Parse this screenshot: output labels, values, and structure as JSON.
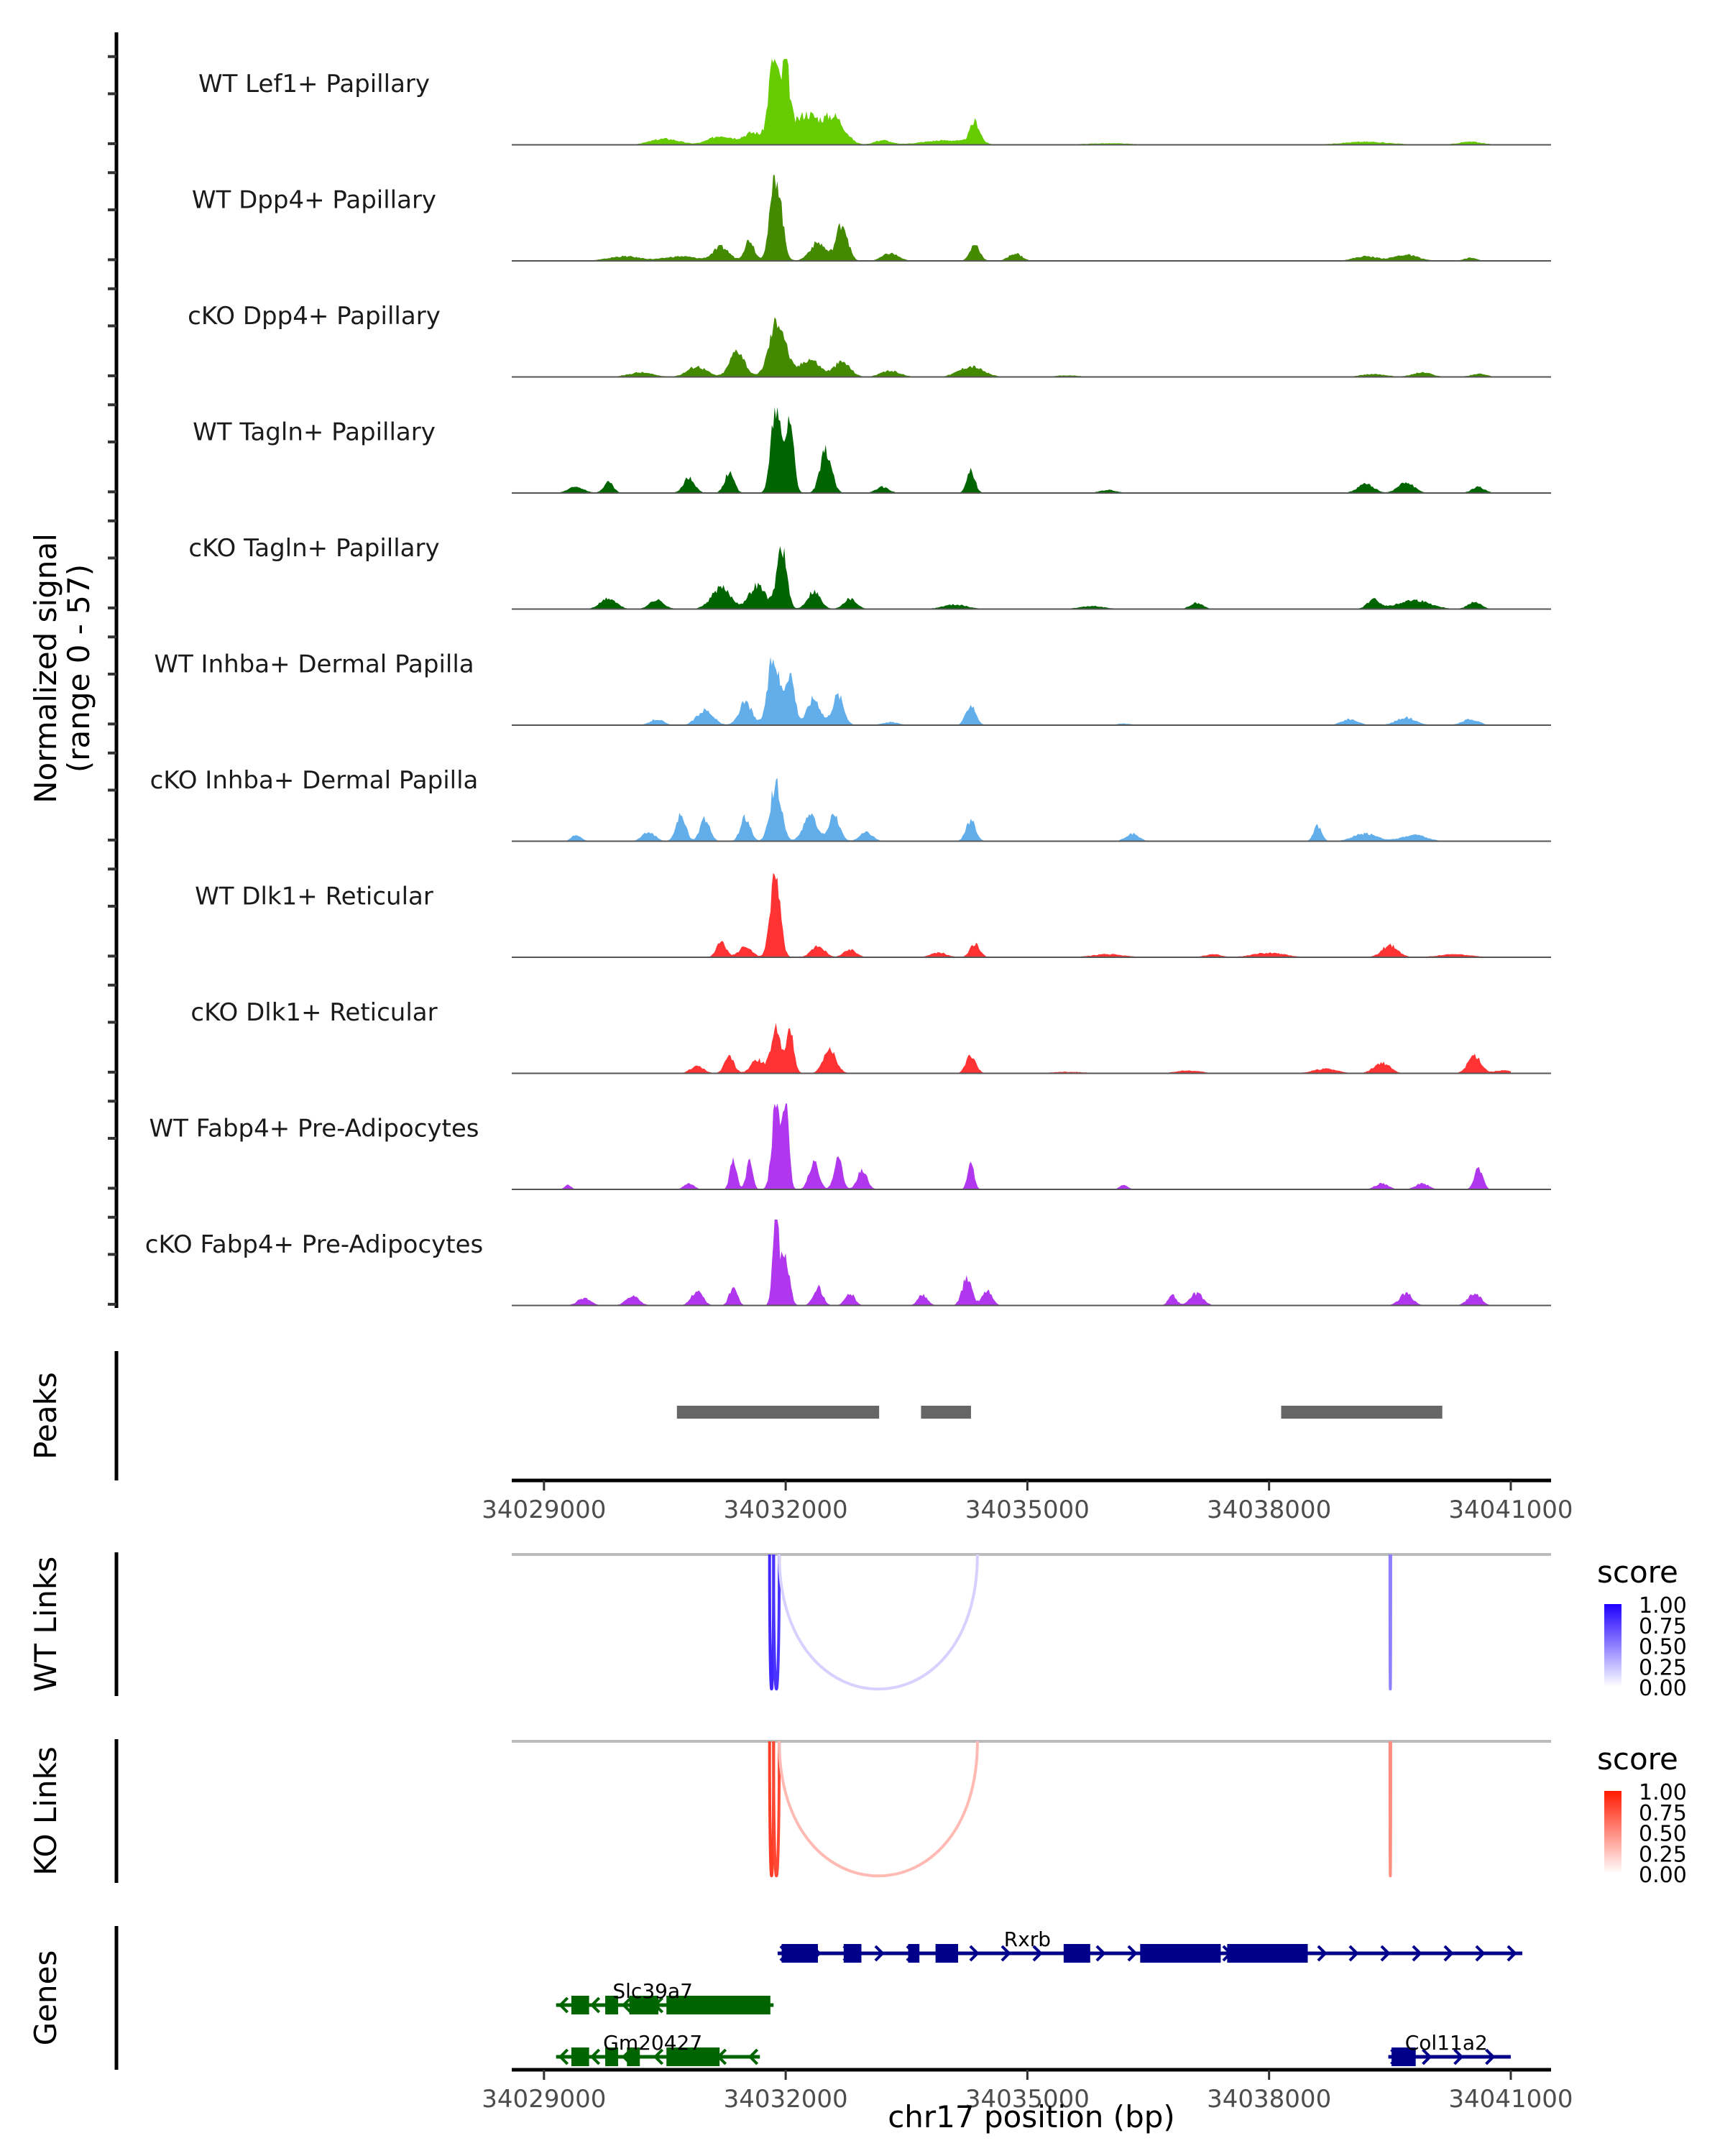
{
  "chart_data": {
    "type": "area",
    "title": "",
    "xlabel": "chr17 position (bp)",
    "x_range": [
      34028600,
      34041500
    ],
    "x_ticks": [
      34029000,
      34032000,
      34035000,
      34038000,
      34041000
    ],
    "coverage": {
      "ylabel_line1": "Normalized signal",
      "ylabel_line2": "(range 0 - 57)",
      "y_range": [
        0,
        57
      ],
      "tracks": [
        {
          "label": "WT Lef1+ Papillary",
          "color": "#66CC00",
          "peaks": [
            [
              34030500,
              180,
              4
            ],
            [
              34031200,
              150,
              6
            ],
            [
              34031600,
              120,
              8
            ],
            [
              34031850,
              60,
              57
            ],
            [
              34032000,
              50,
              48
            ],
            [
              34032250,
              150,
              20
            ],
            [
              34032600,
              130,
              18
            ],
            [
              34033200,
              100,
              3
            ],
            [
              34034000,
              300,
              3
            ],
            [
              34034350,
              60,
              14
            ],
            [
              34036000,
              300,
              1
            ],
            [
              34039200,
              300,
              2
            ],
            [
              34040500,
              150,
              2
            ]
          ]
        },
        {
          "label": "WT Dpp4+ Papillary",
          "color": "#438A00",
          "peaks": [
            [
              34030000,
              200,
              3
            ],
            [
              34030700,
              200,
              3
            ],
            [
              34031200,
              100,
              9
            ],
            [
              34031550,
              60,
              14
            ],
            [
              34031880,
              70,
              57
            ],
            [
              34032400,
              100,
              12
            ],
            [
              34032700,
              70,
              25
            ],
            [
              34033300,
              100,
              5
            ],
            [
              34034350,
              60,
              11
            ],
            [
              34034850,
              80,
              5
            ],
            [
              34039200,
              150,
              3
            ],
            [
              34039700,
              150,
              4
            ],
            [
              34040500,
              80,
              2
            ]
          ]
        },
        {
          "label": "cKO Dpp4+ Papillary",
          "color": "#438A00",
          "peaks": [
            [
              34030200,
              150,
              3
            ],
            [
              34030900,
              120,
              7
            ],
            [
              34031400,
              90,
              18
            ],
            [
              34031900,
              100,
              38
            ],
            [
              34032300,
              120,
              12
            ],
            [
              34032700,
              100,
              10
            ],
            [
              34033300,
              120,
              4
            ],
            [
              34034300,
              150,
              7
            ],
            [
              34035500,
              150,
              1
            ],
            [
              34039300,
              150,
              2
            ],
            [
              34039900,
              120,
              3
            ],
            [
              34040600,
              100,
              2
            ]
          ]
        },
        {
          "label": "WT Tagln+ Papillary",
          "color": "#006400",
          "peaks": [
            [
              34029400,
              100,
              4
            ],
            [
              34029800,
              60,
              7
            ],
            [
              34030800,
              70,
              10
            ],
            [
              34031300,
              60,
              13
            ],
            [
              34031880,
              60,
              57
            ],
            [
              34032050,
              50,
              50
            ],
            [
              34032500,
              70,
              28
            ],
            [
              34033200,
              80,
              4
            ],
            [
              34034300,
              50,
              15
            ],
            [
              34036000,
              100,
              2
            ],
            [
              34039200,
              100,
              6
            ],
            [
              34039700,
              100,
              7
            ],
            [
              34040600,
              80,
              4
            ]
          ]
        },
        {
          "label": "cKO Tagln+ Papillary",
          "color": "#006400",
          "peaks": [
            [
              34029800,
              100,
              7
            ],
            [
              34030400,
              90,
              6
            ],
            [
              34031200,
              120,
              14
            ],
            [
              34031650,
              100,
              16
            ],
            [
              34031950,
              60,
              42
            ],
            [
              34032350,
              80,
              12
            ],
            [
              34032800,
              80,
              7
            ],
            [
              34034100,
              150,
              3
            ],
            [
              34035800,
              150,
              2
            ],
            [
              34037100,
              80,
              4
            ],
            [
              34039300,
              80,
              6
            ],
            [
              34039800,
              200,
              6
            ],
            [
              34040550,
              80,
              5
            ]
          ]
        },
        {
          "label": "WT Inhba+ Dermal Papilla",
          "color": "#62AEEB",
          "peaks": [
            [
              34030400,
              80,
              4
            ],
            [
              34031000,
              100,
              10
            ],
            [
              34031500,
              80,
              15
            ],
            [
              34031850,
              70,
              45
            ],
            [
              34032050,
              60,
              35
            ],
            [
              34032350,
              80,
              18
            ],
            [
              34032650,
              70,
              20
            ],
            [
              34033300,
              100,
              2
            ],
            [
              34034300,
              60,
              14
            ],
            [
              34036200,
              100,
              1
            ],
            [
              34039000,
              100,
              4
            ],
            [
              34039700,
              120,
              5
            ],
            [
              34040500,
              100,
              4
            ]
          ]
        },
        {
          "label": "cKO Inhba+ Dermal Papilla",
          "color": "#62AEEB",
          "peaks": [
            [
              34029400,
              60,
              4
            ],
            [
              34030300,
              80,
              6
            ],
            [
              34030700,
              60,
              17
            ],
            [
              34031000,
              60,
              15
            ],
            [
              34031500,
              60,
              16
            ],
            [
              34031880,
              70,
              38
            ],
            [
              34032300,
              80,
              18
            ],
            [
              34032600,
              70,
              17
            ],
            [
              34033000,
              80,
              6
            ],
            [
              34034300,
              60,
              14
            ],
            [
              34036300,
              80,
              5
            ],
            [
              34038600,
              50,
              10
            ],
            [
              34039200,
              150,
              5
            ],
            [
              34039800,
              150,
              4
            ]
          ]
        },
        {
          "label": "WT Dlk1+ Reticular",
          "color": "#FF3333",
          "peaks": [
            [
              34031200,
              60,
              10
            ],
            [
              34031500,
              80,
              7
            ],
            [
              34031870,
              60,
              57
            ],
            [
              34032400,
              80,
              8
            ],
            [
              34032800,
              80,
              5
            ],
            [
              34033900,
              100,
              3
            ],
            [
              34034350,
              60,
              9
            ],
            [
              34036000,
              200,
              2
            ],
            [
              34037300,
              100,
              2
            ],
            [
              34038000,
              200,
              3
            ],
            [
              34039500,
              100,
              8
            ],
            [
              34040300,
              200,
              2
            ]
          ]
        },
        {
          "label": "cKO Dlk1+ Reticular",
          "color": "#FF3333",
          "peaks": [
            [
              34030900,
              80,
              5
            ],
            [
              34031300,
              60,
              11
            ],
            [
              34031650,
              80,
              9
            ],
            [
              34031880,
              60,
              30
            ],
            [
              34032050,
              50,
              28
            ],
            [
              34032550,
              80,
              15
            ],
            [
              34034300,
              60,
              12
            ],
            [
              34035500,
              200,
              1
            ],
            [
              34037000,
              150,
              2
            ],
            [
              34038700,
              150,
              3
            ],
            [
              34039400,
              100,
              7
            ],
            [
              34040550,
              80,
              12
            ],
            [
              34040900,
              100,
              2
            ]
          ]
        },
        {
          "label": "WT Fabp4+ Pre-Adipocytes",
          "color": "#B037ED",
          "peaks": [
            [
              34029300,
              40,
              3
            ],
            [
              34030800,
              60,
              4
            ],
            [
              34031350,
              40,
              20
            ],
            [
              34031550,
              40,
              18
            ],
            [
              34031880,
              50,
              57
            ],
            [
              34032000,
              40,
              54
            ],
            [
              34032350,
              60,
              18
            ],
            [
              34032650,
              50,
              22
            ],
            [
              34032950,
              60,
              13
            ],
            [
              34034300,
              40,
              18
            ],
            [
              34036200,
              50,
              3
            ],
            [
              34039400,
              80,
              4
            ],
            [
              34039900,
              80,
              4
            ],
            [
              34040600,
              50,
              15
            ]
          ]
        },
        {
          "label": "cKO Fabp4+ Pre-Adipocytes",
          "color": "#B037ED",
          "peaks": [
            [
              34029500,
              80,
              5
            ],
            [
              34030100,
              80,
              6
            ],
            [
              34030900,
              70,
              10
            ],
            [
              34031350,
              50,
              12
            ],
            [
              34031880,
              40,
              57
            ],
            [
              34032000,
              50,
              30
            ],
            [
              34032400,
              60,
              12
            ],
            [
              34032800,
              60,
              8
            ],
            [
              34033700,
              60,
              7
            ],
            [
              34034250,
              60,
              18
            ],
            [
              34034500,
              60,
              10
            ],
            [
              34036800,
              50,
              7
            ],
            [
              34037100,
              80,
              8
            ],
            [
              34039700,
              80,
              8
            ],
            [
              34040550,
              80,
              8
            ]
          ]
        }
      ]
    },
    "peaks_track": {
      "label": "Peaks",
      "color": "#666666",
      "regions": [
        [
          34030650,
          34033160
        ],
        [
          34033680,
          34034300
        ],
        [
          34038150,
          34040150
        ]
      ]
    },
    "links": [
      {
        "label": "WT Links",
        "legend_title": "score",
        "low_color": "#FFFFFF",
        "high_color": "#1E00FF",
        "legend_ticks": [
          "1.00",
          "0.75",
          "0.50",
          "0.25",
          "0.00"
        ],
        "items": [
          {
            "start": 34031800,
            "end": 34031850,
            "score": 0.85
          },
          {
            "start": 34031850,
            "end": 34031920,
            "score": 0.8
          },
          {
            "start": 34031920,
            "end": 34034380,
            "score": 0.18
          },
          {
            "start": 34039500,
            "end": 34039510,
            "score": 0.5
          }
        ]
      },
      {
        "label": "KO Links",
        "legend_title": "score",
        "low_color": "#FFFFFF",
        "high_color": "#FF1A00",
        "legend_ticks": [
          "1.00",
          "0.75",
          "0.50",
          "0.25",
          "0.00"
        ],
        "items": [
          {
            "start": 34031800,
            "end": 34031850,
            "score": 0.85
          },
          {
            "start": 34031850,
            "end": 34031920,
            "score": 0.8
          },
          {
            "start": 34031920,
            "end": 34034380,
            "score": 0.3
          },
          {
            "start": 34039500,
            "end": 34039510,
            "score": 0.5
          }
        ]
      }
    ],
    "genes": {
      "label": "Genes",
      "items": [
        {
          "name": "Rxrb",
          "strand": "+",
          "color": "#00008B",
          "row": 0,
          "start": 34031900,
          "end": 34041900,
          "exons": [
            [
              34031950,
              34032400
            ],
            [
              34032720,
              34032940
            ],
            [
              34033520,
              34033660
            ],
            [
              34033860,
              34034140
            ],
            [
              34035450,
              34035780
            ],
            [
              34036400,
              34037400
            ],
            [
              34037480,
              34038480
            ]
          ]
        },
        {
          "name": "Slc39a7",
          "strand": "-",
          "color": "#006400",
          "row": 1,
          "start": 34029150,
          "end": 34031850,
          "exons": [
            [
              34029340,
              34029560
            ],
            [
              34029760,
              34029920
            ],
            [
              34030060,
              34030420
            ],
            [
              34030520,
              34031810
            ]
          ]
        },
        {
          "name": "Gm20427",
          "strand": "-",
          "color": "#006400",
          "row": 2,
          "start": 34029150,
          "end": 34031680,
          "exons": [
            [
              34029340,
              34029560
            ],
            [
              34029760,
              34029920
            ],
            [
              34030030,
              34030190
            ],
            [
              34030520,
              34031180
            ]
          ]
        },
        {
          "name": "Col11a2",
          "strand": "+",
          "color": "#00008B",
          "row": 2,
          "start": 34039480,
          "end": 34041000,
          "exons": [
            [
              34039520,
              34039820
            ]
          ]
        }
      ]
    }
  }
}
